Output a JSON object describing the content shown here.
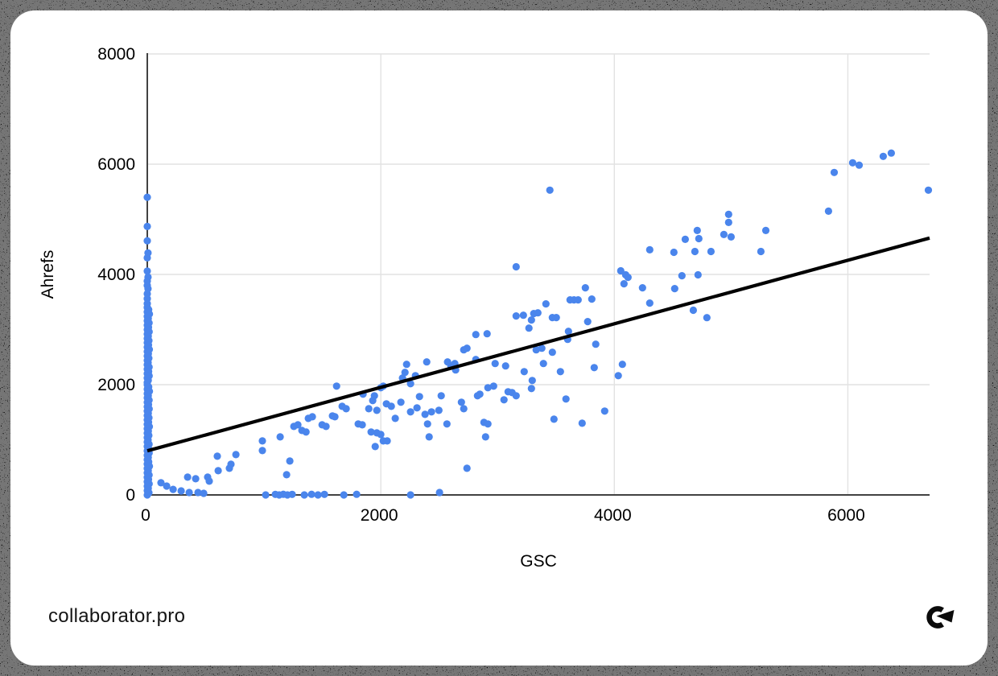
{
  "branding": {
    "site": "collaborator.pro",
    "logo_icon": "collaborator-c-arrow-icon"
  },
  "chart_data": {
    "type": "scatter",
    "title": "",
    "xlabel": "GSC",
    "ylabel": "Ahrefs",
    "xlim": [
      0,
      6700
    ],
    "ylim": [
      0,
      8000
    ],
    "x_ticks": [
      0,
      2000,
      4000,
      6000
    ],
    "y_ticks": [
      0,
      2000,
      4000,
      6000,
      8000
    ],
    "grid": true,
    "legend": "none",
    "point_color": "#4a85ec",
    "grid_color": "#e2e2e2",
    "axis_color": "#424242",
    "trendline": {
      "color": "#000000",
      "x1": 0,
      "y1": 800,
      "x2": 6700,
      "y2": 4660
    },
    "points": [
      [
        0,
        5400
      ],
      [
        0,
        4870
      ],
      [
        0,
        4610
      ],
      [
        6,
        4390
      ],
      [
        0,
        4300
      ],
      [
        0,
        4060
      ],
      [
        6,
        3950
      ],
      [
        0,
        3880
      ],
      [
        0,
        3800
      ],
      [
        6,
        3740
      ],
      [
        0,
        3650
      ],
      [
        0,
        3560
      ],
      [
        0,
        3470
      ],
      [
        0,
        3400
      ],
      [
        12,
        3360
      ],
      [
        0,
        3320
      ],
      [
        18,
        3280
      ],
      [
        0,
        3240
      ],
      [
        8,
        3200
      ],
      [
        0,
        3160
      ],
      [
        15,
        3120
      ],
      [
        0,
        3080
      ],
      [
        10,
        3040
      ],
      [
        0,
        3000
      ],
      [
        16,
        2960
      ],
      [
        0,
        2920
      ],
      [
        8,
        2880
      ],
      [
        0,
        2840
      ],
      [
        14,
        2800
      ],
      [
        0,
        2760
      ],
      [
        10,
        2720
      ],
      [
        0,
        2680
      ],
      [
        17,
        2640
      ],
      [
        0,
        2600
      ],
      [
        9,
        2560
      ],
      [
        0,
        2520
      ],
      [
        13,
        2480
      ],
      [
        0,
        2440
      ],
      [
        7,
        2400
      ],
      [
        0,
        2360
      ],
      [
        15,
        2320
      ],
      [
        0,
        2280
      ],
      [
        11,
        2240
      ],
      [
        0,
        2200
      ],
      [
        16,
        2160
      ],
      [
        0,
        2120
      ],
      [
        8,
        2080
      ],
      [
        0,
        2040
      ],
      [
        0,
        2000
      ],
      [
        12,
        1960
      ],
      [
        0,
        1920
      ],
      [
        18,
        1880
      ],
      [
        0,
        1840
      ],
      [
        8,
        1800
      ],
      [
        0,
        1760
      ],
      [
        15,
        1720
      ],
      [
        0,
        1680
      ],
      [
        10,
        1640
      ],
      [
        0,
        1600
      ],
      [
        16,
        1560
      ],
      [
        0,
        1520
      ],
      [
        8,
        1480
      ],
      [
        0,
        1440
      ],
      [
        14,
        1400
      ],
      [
        0,
        1360
      ],
      [
        10,
        1320
      ],
      [
        0,
        1280
      ],
      [
        17,
        1240
      ],
      [
        0,
        1200
      ],
      [
        9,
        1160
      ],
      [
        0,
        1120
      ],
      [
        13,
        1080
      ],
      [
        0,
        1040
      ],
      [
        7,
        1000
      ],
      [
        0,
        960
      ],
      [
        15,
        920
      ],
      [
        0,
        880
      ],
      [
        11,
        840
      ],
      [
        0,
        800
      ],
      [
        16,
        760
      ],
      [
        0,
        720
      ],
      [
        8,
        680
      ],
      [
        0,
        640
      ],
      [
        12,
        600
      ],
      [
        0,
        560
      ],
      [
        18,
        520
      ],
      [
        0,
        480
      ],
      [
        8,
        440
      ],
      [
        0,
        400
      ],
      [
        15,
        360
      ],
      [
        0,
        320
      ],
      [
        10,
        280
      ],
      [
        0,
        240
      ],
      [
        16,
        200
      ],
      [
        0,
        160
      ],
      [
        8,
        120
      ],
      [
        0,
        80
      ],
      [
        14,
        40
      ],
      [
        0,
        0
      ],
      [
        117,
        220
      ],
      [
        166,
        160
      ],
      [
        221,
        100
      ],
      [
        290,
        73
      ],
      [
        359,
        44
      ],
      [
        434,
        44
      ],
      [
        483,
        29
      ],
      [
        345,
        322
      ],
      [
        414,
        293
      ],
      [
        517,
        322
      ],
      [
        531,
        249
      ],
      [
        600,
        702
      ],
      [
        607,
        439
      ],
      [
        703,
        483
      ],
      [
        717,
        556
      ],
      [
        759,
        731
      ],
      [
        986,
        980
      ],
      [
        986,
        804
      ],
      [
        1138,
        1053
      ],
      [
        1193,
        366
      ],
      [
        1221,
        614
      ],
      [
        1255,
        1243
      ],
      [
        1290,
        1272
      ],
      [
        1324,
        1170
      ],
      [
        1359,
        1141
      ],
      [
        1379,
        1389
      ],
      [
        1414,
        1418
      ],
      [
        1497,
        1272
      ],
      [
        1531,
        1243
      ],
      [
        1586,
        1433
      ],
      [
        1607,
        1418
      ],
      [
        1621,
        1974
      ],
      [
        1669,
        1608
      ],
      [
        1703,
        1564
      ],
      [
        1014,
        0
      ],
      [
        1097,
        10
      ],
      [
        1130,
        0
      ],
      [
        1165,
        12
      ],
      [
        1200,
        0
      ],
      [
        1241,
        10
      ],
      [
        1345,
        0
      ],
      [
        1407,
        12
      ],
      [
        1462,
        0
      ],
      [
        1517,
        10
      ],
      [
        1683,
        0
      ],
      [
        1793,
        12
      ],
      [
        2255,
        0
      ],
      [
        2503,
        44
      ],
      [
        1848,
        1828
      ],
      [
        1931,
        1711
      ],
      [
        1897,
        1564
      ],
      [
        1966,
        1535
      ],
      [
        1807,
        1287
      ],
      [
        1841,
        1272
      ],
      [
        2000,
        1945
      ],
      [
        2021,
        1974
      ],
      [
        1945,
        1799
      ],
      [
        1966,
        1126
      ],
      [
        2000,
        1097
      ],
      [
        1917,
        1141
      ],
      [
        1952,
        877
      ],
      [
        2021,
        980
      ],
      [
        2055,
        980
      ],
      [
        2186,
        2121
      ],
      [
        2207,
        2223
      ],
      [
        2221,
        2369
      ],
      [
        2297,
        2164
      ],
      [
        2255,
        2018
      ],
      [
        2172,
        1682
      ],
      [
        2048,
        1652
      ],
      [
        2090,
        1608
      ],
      [
        2124,
        1389
      ],
      [
        2255,
        1506
      ],
      [
        2310,
        1579
      ],
      [
        2331,
        1784
      ],
      [
        2393,
        2413
      ],
      [
        2379,
        1462
      ],
      [
        2400,
        1287
      ],
      [
        2434,
        1506
      ],
      [
        2497,
        1535
      ],
      [
        2414,
        1053
      ],
      [
        2517,
        1799
      ],
      [
        2572,
        2413
      ],
      [
        2600,
        2340
      ],
      [
        2634,
        2384
      ],
      [
        2641,
        2267
      ],
      [
        2566,
        1287
      ],
      [
        2710,
        2632
      ],
      [
        2690,
        1682
      ],
      [
        2710,
        1564
      ],
      [
        2814,
        2457
      ],
      [
        2828,
        1799
      ],
      [
        2848,
        1828
      ],
      [
        2917,
        1945
      ],
      [
        2966,
        1974
      ],
      [
        2883,
        1316
      ],
      [
        2917,
        1287
      ],
      [
        2897,
        1053
      ],
      [
        2979,
        2384
      ],
      [
        3069,
        2340
      ],
      [
        3055,
        1726
      ],
      [
        3090,
        1872
      ],
      [
        3124,
        1857
      ],
      [
        3159,
        1799
      ],
      [
        3228,
        2237
      ],
      [
        3290,
        1930
      ],
      [
        3297,
        2076
      ],
      [
        3331,
        2632
      ],
      [
        3379,
        2661
      ],
      [
        3393,
        2384
      ],
      [
        2738,
        483
      ],
      [
        2738,
        2661
      ],
      [
        2814,
        2910
      ],
      [
        2910,
        2924
      ],
      [
        3159,
        4138
      ],
      [
        3159,
        3246
      ],
      [
        3221,
        3260
      ],
      [
        3310,
        3290
      ],
      [
        3345,
        3304
      ],
      [
        3290,
        3173
      ],
      [
        3269,
        3026
      ],
      [
        3414,
        3465
      ],
      [
        3448,
        5528
      ],
      [
        3469,
        3217
      ],
      [
        3503,
        3217
      ],
      [
        3772,
        3144
      ],
      [
        3607,
        2968
      ],
      [
        3600,
        2822
      ],
      [
        3469,
        2588
      ],
      [
        3538,
        2237
      ],
      [
        3828,
        2310
      ],
      [
        3841,
        2734
      ],
      [
        4069,
        2369
      ],
      [
        4034,
        2164
      ],
      [
        3586,
        1740
      ],
      [
        3917,
        1521
      ],
      [
        3483,
        1374
      ],
      [
        3724,
        1301
      ],
      [
        3621,
        3538
      ],
      [
        3655,
        3538
      ],
      [
        3690,
        3538
      ],
      [
        3752,
        3758
      ],
      [
        3807,
        3553
      ],
      [
        4055,
        4066
      ],
      [
        4097,
        3992
      ],
      [
        4117,
        3948
      ],
      [
        4083,
        3831
      ],
      [
        4241,
        3758
      ],
      [
        4303,
        4446
      ],
      [
        4303,
        3480
      ],
      [
        4510,
        4402
      ],
      [
        4517,
        3743
      ],
      [
        4579,
        3977
      ],
      [
        4607,
        4636
      ],
      [
        4676,
        3350
      ],
      [
        4690,
        4416
      ],
      [
        4710,
        4797
      ],
      [
        4717,
        3992
      ],
      [
        4724,
        4650
      ],
      [
        4793,
        3216
      ],
      [
        4828,
        4416
      ],
      [
        4938,
        4724
      ],
      [
        4979,
        5089
      ],
      [
        4979,
        4943
      ],
      [
        5000,
        4680
      ],
      [
        5255,
        4416
      ],
      [
        5297,
        4797
      ],
      [
        5834,
        5148
      ],
      [
        5883,
        5850
      ],
      [
        6041,
        6025
      ],
      [
        6097,
        5982
      ],
      [
        6303,
        6142
      ],
      [
        6372,
        6201
      ],
      [
        6690,
        5528
      ]
    ]
  }
}
